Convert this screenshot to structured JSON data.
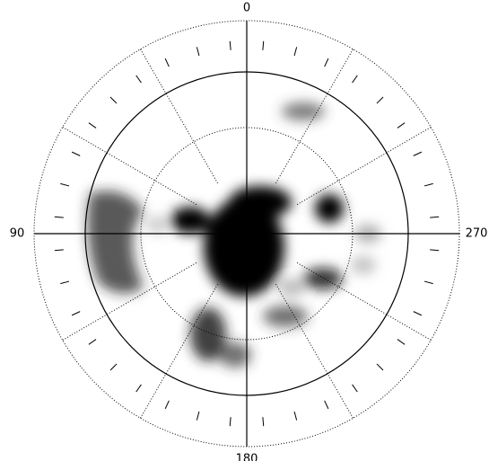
{
  "chart_data": {
    "type": "polar",
    "thetaticks": [
      0,
      90,
      180,
      270
    ],
    "theta_direction": "counterclockwise",
    "theta_zero": "top",
    "color": "#000000"
  }
}
